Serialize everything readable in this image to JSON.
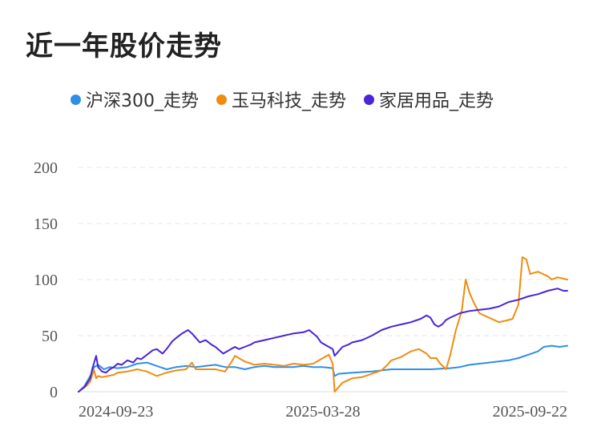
{
  "title": "近一年股价走势",
  "legend": [
    {
      "label": "沪深300_走势",
      "color": "#2f8ee8"
    },
    {
      "label": "玉马科技_走势",
      "color": "#f08c10"
    },
    {
      "label": "家居用品_走势",
      "color": "#4a24d8"
    }
  ],
  "chart_data": {
    "type": "line",
    "title": "近一年股价走势",
    "x_ticks": [
      "2024-09-23",
      "2025-03-28",
      "2025-09-22"
    ],
    "y_ticks": [
      0,
      50,
      100,
      150,
      200
    ],
    "ylim": [
      0,
      200
    ],
    "x_range": [
      0,
      250
    ],
    "grid": true,
    "legend_position": "top",
    "series": [
      {
        "name": "沪深300_走势",
        "color": "#2f8ee8",
        "points": [
          [
            0,
            0
          ],
          [
            3,
            5
          ],
          [
            6,
            14
          ],
          [
            8,
            22
          ],
          [
            10,
            24
          ],
          [
            13,
            20
          ],
          [
            16,
            22
          ],
          [
            20,
            21
          ],
          [
            25,
            22
          ],
          [
            30,
            25
          ],
          [
            35,
            26
          ],
          [
            40,
            23
          ],
          [
            45,
            20
          ],
          [
            50,
            22
          ],
          [
            55,
            23
          ],
          [
            60,
            22
          ],
          [
            65,
            23
          ],
          [
            70,
            24
          ],
          [
            75,
            22
          ],
          [
            80,
            22
          ],
          [
            85,
            20
          ],
          [
            90,
            22
          ],
          [
            95,
            23
          ],
          [
            100,
            22
          ],
          [
            105,
            22
          ],
          [
            110,
            22
          ],
          [
            115,
            23
          ],
          [
            120,
            22
          ],
          [
            125,
            22
          ],
          [
            130,
            21
          ],
          [
            131,
            14
          ],
          [
            133,
            16
          ],
          [
            140,
            17
          ],
          [
            150,
            18
          ],
          [
            160,
            20
          ],
          [
            170,
            20
          ],
          [
            180,
            20
          ],
          [
            190,
            21
          ],
          [
            195,
            22
          ],
          [
            200,
            24
          ],
          [
            210,
            26
          ],
          [
            220,
            28
          ],
          [
            225,
            30
          ],
          [
            230,
            33
          ],
          [
            235,
            36
          ],
          [
            238,
            40
          ],
          [
            242,
            41
          ],
          [
            246,
            40
          ],
          [
            250,
            41
          ]
        ]
      },
      {
        "name": "玉马科技_走势",
        "color": "#f08c10",
        "points": [
          [
            0,
            0
          ],
          [
            2,
            3
          ],
          [
            4,
            5
          ],
          [
            6,
            9
          ],
          [
            7,
            15
          ],
          [
            8,
            19
          ],
          [
            9,
            12
          ],
          [
            10,
            14
          ],
          [
            12,
            13
          ],
          [
            15,
            14
          ],
          [
            18,
            15
          ],
          [
            20,
            17
          ],
          [
            25,
            18
          ],
          [
            30,
            20
          ],
          [
            35,
            18
          ],
          [
            40,
            14
          ],
          [
            45,
            17
          ],
          [
            50,
            19
          ],
          [
            55,
            20
          ],
          [
            58,
            26
          ],
          [
            60,
            20
          ],
          [
            65,
            20
          ],
          [
            70,
            20
          ],
          [
            75,
            18
          ],
          [
            78,
            26
          ],
          [
            80,
            32
          ],
          [
            85,
            27
          ],
          [
            90,
            24
          ],
          [
            95,
            25
          ],
          [
            100,
            24
          ],
          [
            105,
            23
          ],
          [
            110,
            25
          ],
          [
            115,
            24
          ],
          [
            120,
            25
          ],
          [
            125,
            30
          ],
          [
            128,
            33
          ],
          [
            130,
            25
          ],
          [
            131,
            0
          ],
          [
            132,
            2
          ],
          [
            135,
            8
          ],
          [
            140,
            12
          ],
          [
            145,
            13
          ],
          [
            150,
            16
          ],
          [
            155,
            19
          ],
          [
            158,
            24
          ],
          [
            160,
            28
          ],
          [
            165,
            31
          ],
          [
            170,
            36
          ],
          [
            174,
            38
          ],
          [
            178,
            34
          ],
          [
            180,
            30
          ],
          [
            183,
            30
          ],
          [
            185,
            25
          ],
          [
            188,
            20
          ],
          [
            190,
            32
          ],
          [
            193,
            55
          ],
          [
            196,
            72
          ],
          [
            198,
            100
          ],
          [
            200,
            88
          ],
          [
            202,
            80
          ],
          [
            205,
            70
          ],
          [
            210,
            66
          ],
          [
            215,
            62
          ],
          [
            220,
            64
          ],
          [
            222,
            65
          ],
          [
            225,
            78
          ],
          [
            227,
            120
          ],
          [
            229,
            118
          ],
          [
            231,
            105
          ],
          [
            235,
            107
          ],
          [
            240,
            103
          ],
          [
            242,
            100
          ],
          [
            245,
            102
          ],
          [
            250,
            100
          ]
        ]
      },
      {
        "name": "家居用品_走势",
        "color": "#4a24d8",
        "points": [
          [
            0,
            0
          ],
          [
            3,
            4
          ],
          [
            6,
            12
          ],
          [
            7,
            20
          ],
          [
            8,
            26
          ],
          [
            9,
            32
          ],
          [
            10,
            22
          ],
          [
            12,
            18
          ],
          [
            14,
            17
          ],
          [
            16,
            20
          ],
          [
            18,
            22
          ],
          [
            20,
            25
          ],
          [
            22,
            24
          ],
          [
            25,
            28
          ],
          [
            28,
            26
          ],
          [
            30,
            30
          ],
          [
            32,
            29
          ],
          [
            35,
            33
          ],
          [
            38,
            37
          ],
          [
            40,
            38
          ],
          [
            43,
            34
          ],
          [
            45,
            38
          ],
          [
            48,
            45
          ],
          [
            50,
            48
          ],
          [
            53,
            52
          ],
          [
            56,
            55
          ],
          [
            58,
            52
          ],
          [
            60,
            48
          ],
          [
            62,
            44
          ],
          [
            65,
            46
          ],
          [
            68,
            42
          ],
          [
            70,
            40
          ],
          [
            72,
            37
          ],
          [
            74,
            34
          ],
          [
            76,
            36
          ],
          [
            78,
            38
          ],
          [
            80,
            40
          ],
          [
            82,
            38
          ],
          [
            85,
            40
          ],
          [
            88,
            42
          ],
          [
            90,
            44
          ],
          [
            95,
            46
          ],
          [
            100,
            48
          ],
          [
            105,
            50
          ],
          [
            110,
            52
          ],
          [
            115,
            53
          ],
          [
            118,
            55
          ],
          [
            120,
            52
          ],
          [
            122,
            49
          ],
          [
            124,
            44
          ],
          [
            126,
            42
          ],
          [
            128,
            40
          ],
          [
            130,
            38
          ],
          [
            131,
            32
          ],
          [
            133,
            36
          ],
          [
            135,
            40
          ],
          [
            138,
            42
          ],
          [
            140,
            44
          ],
          [
            145,
            46
          ],
          [
            150,
            50
          ],
          [
            155,
            55
          ],
          [
            160,
            58
          ],
          [
            165,
            60
          ],
          [
            170,
            62
          ],
          [
            175,
            65
          ],
          [
            178,
            68
          ],
          [
            180,
            66
          ],
          [
            182,
            60
          ],
          [
            184,
            58
          ],
          [
            186,
            60
          ],
          [
            188,
            64
          ],
          [
            190,
            66
          ],
          [
            195,
            70
          ],
          [
            200,
            72
          ],
          [
            205,
            73
          ],
          [
            210,
            74
          ],
          [
            215,
            76
          ],
          [
            220,
            80
          ],
          [
            225,
            82
          ],
          [
            230,
            85
          ],
          [
            235,
            87
          ],
          [
            240,
            90
          ],
          [
            245,
            92
          ],
          [
            248,
            90
          ],
          [
            250,
            90
          ]
        ]
      }
    ]
  }
}
